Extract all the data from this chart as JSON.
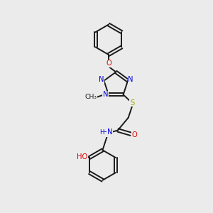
{
  "background_color": "#ebebeb",
  "bond_color": "#1a1a1a",
  "atom_colors": {
    "N": "#0000dd",
    "O": "#dd0000",
    "S": "#aaaa00",
    "C": "#1a1a1a"
  },
  "figsize": [
    3.0,
    3.0
  ],
  "dpi": 100,
  "xlim": [
    0,
    10
  ],
  "ylim": [
    0,
    10
  ]
}
